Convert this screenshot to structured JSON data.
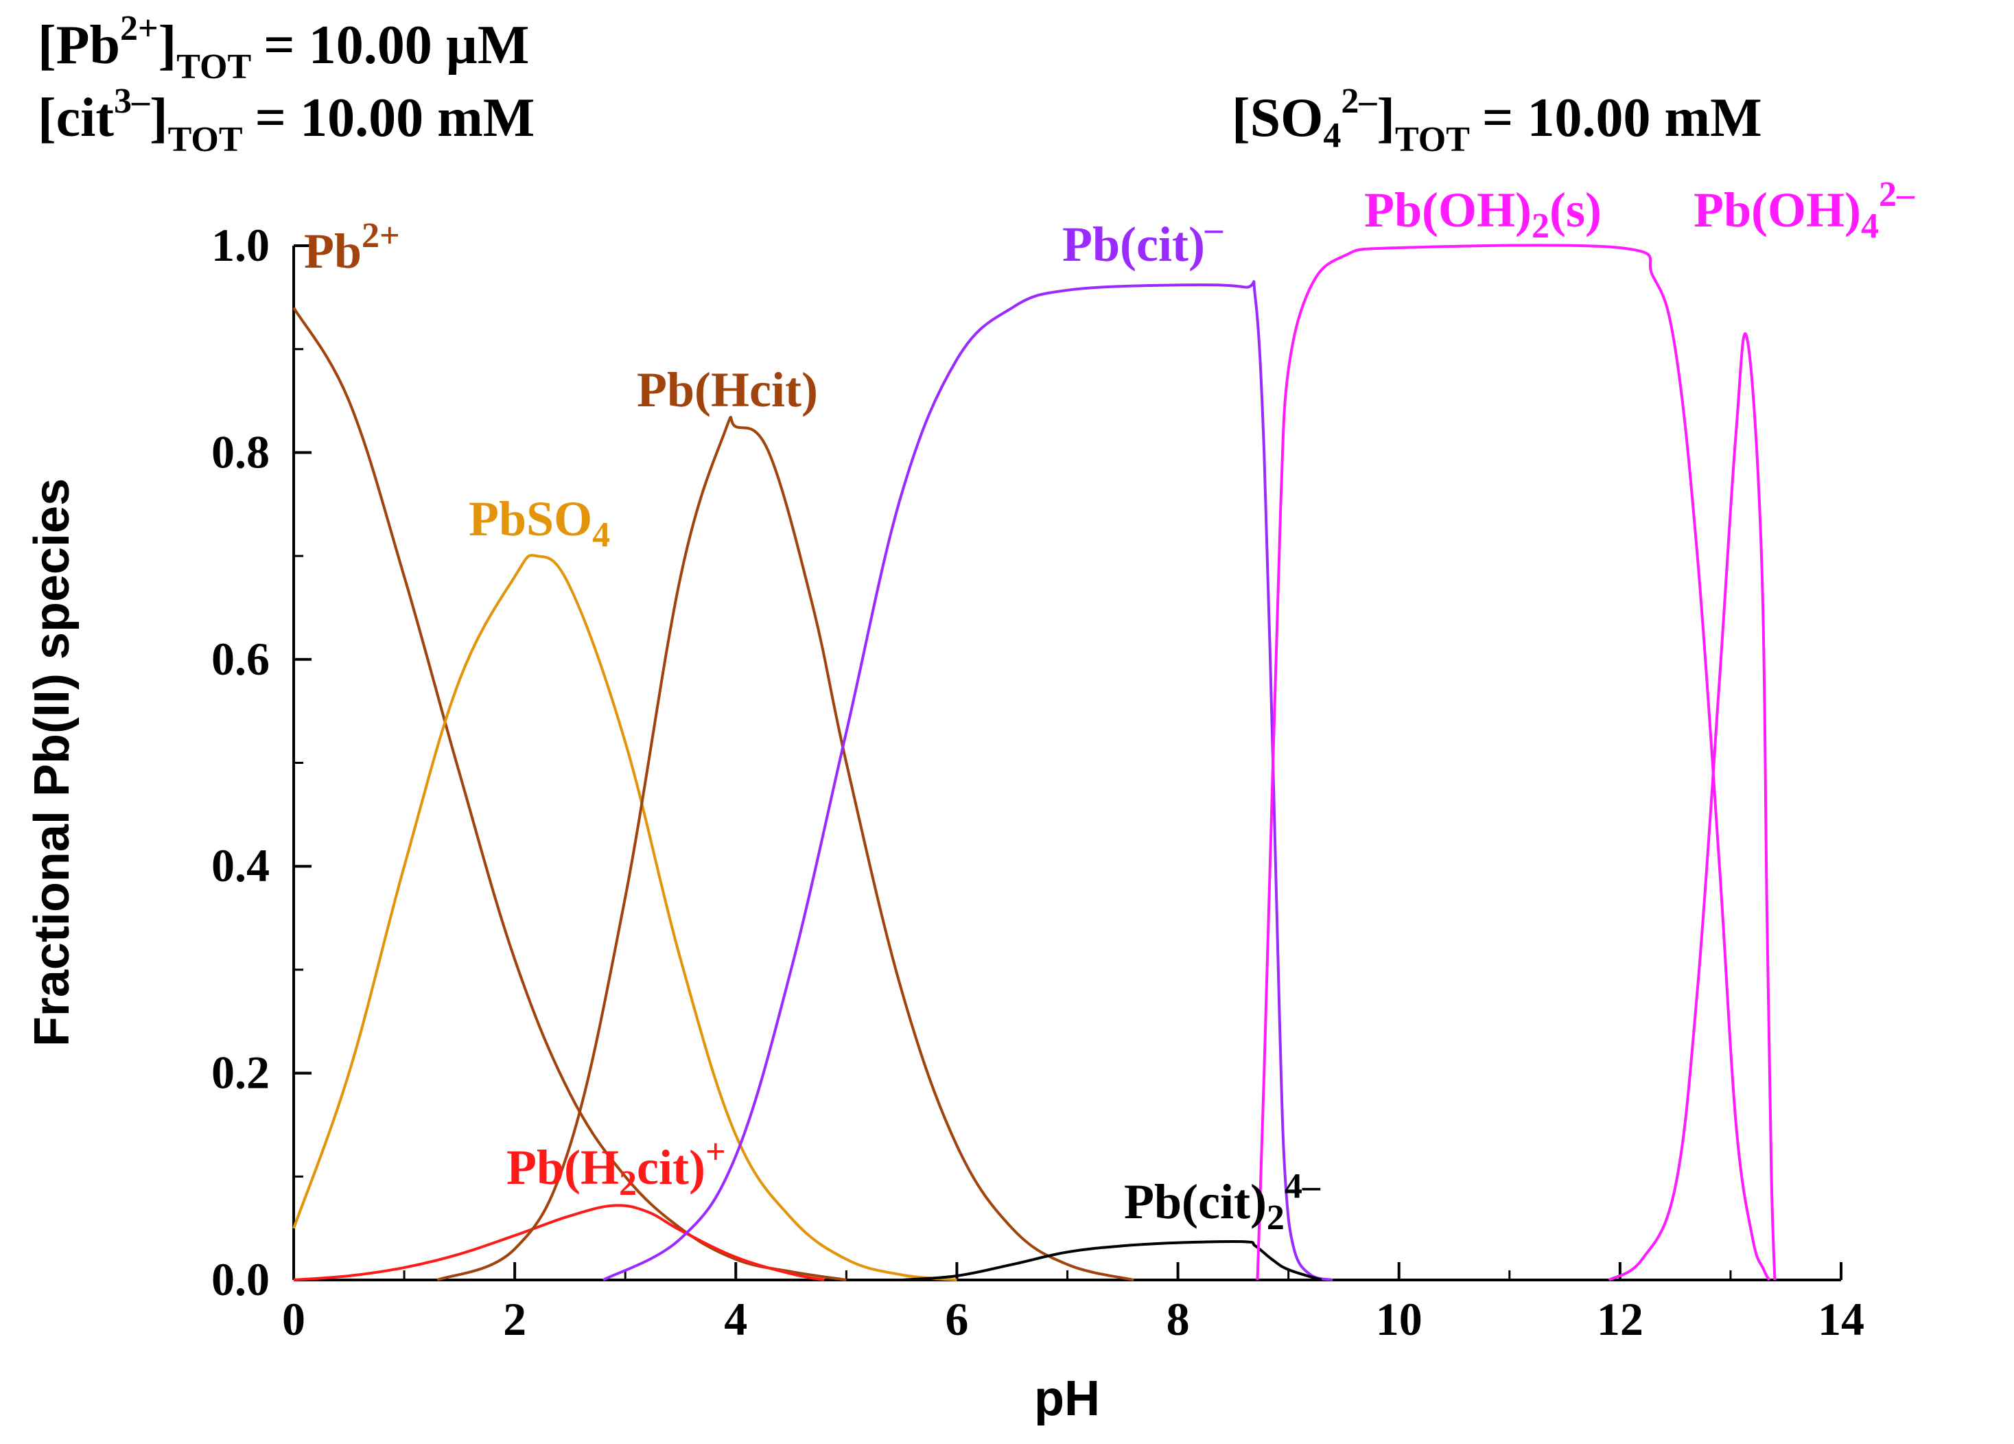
{
  "conditions": {
    "pb": {
      "open": "[Pb",
      "sup": "2+",
      "close": "]",
      "sub": "TOT",
      "value": "=   10.00 µM"
    },
    "cit": {
      "open": "[cit",
      "sup": "3–",
      "close": "]",
      "sub": "TOT",
      "value": "=   10.00 mM"
    },
    "so4": {
      "open": "[SO",
      "sub1": "4",
      "sup": "2–",
      "close": "]",
      "sub": "TOT",
      "value": "=   10.00 mM"
    }
  },
  "chart_data": {
    "type": "line",
    "title": "",
    "xlabel": "pH",
    "ylabel": "Fractional Pb(II) species",
    "xlim": [
      0,
      14
    ],
    "ylim": [
      0,
      1
    ],
    "x_ticks": [
      0,
      2,
      4,
      6,
      8,
      10,
      12,
      14
    ],
    "x_tick_labels": [
      "0",
      "2",
      "4",
      "6",
      "8",
      "10",
      "12",
      "14"
    ],
    "y_ticks": [
      0,
      0.2,
      0.4,
      0.6,
      0.8,
      1.0
    ],
    "y_tick_labels": [
      "0.0",
      "0.2",
      "0.4",
      "0.6",
      "0.8",
      "1.0"
    ],
    "grid": false,
    "series": [
      {
        "name": "Pb2+",
        "color": "#a0430c",
        "label": {
          "base": "Pb",
          "sup": "2+",
          "sub": ""
        },
        "points": [
          [
            0,
            0.94
          ],
          [
            0.5,
            0.85
          ],
          [
            1.0,
            0.68
          ],
          [
            1.5,
            0.49
          ],
          [
            2.0,
            0.31
          ],
          [
            2.5,
            0.18
          ],
          [
            3.0,
            0.1
          ],
          [
            3.5,
            0.05
          ],
          [
            4.0,
            0.02
          ],
          [
            4.5,
            0.008
          ],
          [
            5.0,
            0.0
          ]
        ]
      },
      {
        "name": "PbSO4",
        "color": "#e2950a",
        "label": {
          "base": "PbSO",
          "sub": "4",
          "sup": ""
        },
        "points": [
          [
            0,
            0.05
          ],
          [
            0.5,
            0.2
          ],
          [
            1.0,
            0.4
          ],
          [
            1.5,
            0.58
          ],
          [
            2.0,
            0.68
          ],
          [
            2.2,
            0.7
          ],
          [
            2.5,
            0.67
          ],
          [
            3.0,
            0.52
          ],
          [
            3.5,
            0.31
          ],
          [
            4.0,
            0.14
          ],
          [
            4.5,
            0.06
          ],
          [
            5.0,
            0.02
          ],
          [
            5.5,
            0.005
          ],
          [
            6.0,
            0.0
          ]
        ]
      },
      {
        "name": "Pb(H2cit)+",
        "color": "#ff1a1a",
        "label": {
          "base": "Pb(H",
          "sub": "2",
          "rest": "cit)",
          "sup": "+"
        },
        "points": [
          [
            0,
            0.0
          ],
          [
            0.5,
            0.004
          ],
          [
            1.0,
            0.012
          ],
          [
            1.5,
            0.025
          ],
          [
            2.0,
            0.043
          ],
          [
            2.5,
            0.062
          ],
          [
            2.9,
            0.072
          ],
          [
            3.2,
            0.066
          ],
          [
            3.5,
            0.048
          ],
          [
            4.0,
            0.022
          ],
          [
            4.5,
            0.006
          ],
          [
            4.8,
            0.0
          ]
        ]
      },
      {
        "name": "Pb(Hcit)",
        "color": "#a0430c",
        "label": {
          "base": "Pb(Hcit)",
          "sub": "",
          "sup": ""
        },
        "points": [
          [
            1.3,
            0.0
          ],
          [
            2.0,
            0.03
          ],
          [
            2.5,
            0.13
          ],
          [
            3.0,
            0.37
          ],
          [
            3.5,
            0.68
          ],
          [
            3.9,
            0.82
          ],
          [
            4.0,
            0.825
          ],
          [
            4.3,
            0.8
          ],
          [
            4.7,
            0.65
          ],
          [
            5.0,
            0.5
          ],
          [
            5.5,
            0.28
          ],
          [
            6.0,
            0.13
          ],
          [
            6.5,
            0.05
          ],
          [
            7.0,
            0.015
          ],
          [
            7.6,
            0.0
          ]
        ]
      },
      {
        "name": "Pb(cit)-",
        "color": "#9a2bff",
        "label": {
          "base": "Pb(cit)",
          "sup": "–",
          "sub": ""
        },
        "points": [
          [
            2.8,
            0.0
          ],
          [
            3.5,
            0.04
          ],
          [
            4.0,
            0.12
          ],
          [
            4.5,
            0.3
          ],
          [
            5.0,
            0.53
          ],
          [
            5.5,
            0.76
          ],
          [
            6.0,
            0.89
          ],
          [
            6.5,
            0.94
          ],
          [
            7.0,
            0.957
          ],
          [
            8.0,
            0.962
          ],
          [
            8.6,
            0.96
          ],
          [
            8.7,
            0.95
          ],
          [
            8.78,
            0.8
          ],
          [
            8.86,
            0.5
          ],
          [
            8.92,
            0.25
          ],
          [
            8.97,
            0.1
          ],
          [
            9.05,
            0.03
          ],
          [
            9.2,
            0.005
          ],
          [
            9.4,
            0.0
          ]
        ]
      },
      {
        "name": "Pb(cit)2^4-",
        "color": "#000000",
        "label": {
          "base": "Pb(cit)",
          "sub": "2",
          "sup": "4–"
        },
        "points": [
          [
            5.5,
            0.0
          ],
          [
            6.0,
            0.004
          ],
          [
            6.5,
            0.015
          ],
          [
            7.0,
            0.027
          ],
          [
            7.5,
            0.033
          ],
          [
            8.0,
            0.036
          ],
          [
            8.6,
            0.037
          ],
          [
            8.7,
            0.033
          ],
          [
            8.85,
            0.02
          ],
          [
            9.0,
            0.01
          ],
          [
            9.3,
            0.0
          ]
        ]
      },
      {
        "name": "Pb(OH)2(s)",
        "color": "#ff1aff",
        "label": {
          "base": "Pb(OH)",
          "sub": "2",
          "rest": "(s)",
          "sup": ""
        },
        "points": [
          [
            8.72,
            0.0
          ],
          [
            8.78,
            0.2
          ],
          [
            8.86,
            0.5
          ],
          [
            8.93,
            0.75
          ],
          [
            9.0,
            0.88
          ],
          [
            9.2,
            0.96
          ],
          [
            9.5,
            0.99
          ],
          [
            10.0,
            0.998
          ],
          [
            12.0,
            0.998
          ],
          [
            12.3,
            0.97
          ],
          [
            12.5,
            0.9
          ],
          [
            12.7,
            0.7
          ],
          [
            12.9,
            0.4
          ],
          [
            13.05,
            0.15
          ],
          [
            13.2,
            0.04
          ],
          [
            13.3,
            0.01
          ],
          [
            13.35,
            0.0
          ]
        ]
      },
      {
        "name": "Pb(OH)4^2-",
        "color": "#ff1aff",
        "label": {
          "base": "Pb(OH)",
          "sub": "4",
          "sup": "2–"
        },
        "points": [
          [
            11.9,
            0.0
          ],
          [
            12.2,
            0.02
          ],
          [
            12.5,
            0.09
          ],
          [
            12.7,
            0.28
          ],
          [
            12.9,
            0.58
          ],
          [
            13.05,
            0.82
          ],
          [
            13.15,
            0.91
          ],
          [
            13.28,
            0.7
          ],
          [
            13.33,
            0.35
          ],
          [
            13.37,
            0.1
          ],
          [
            13.4,
            0.0
          ]
        ]
      }
    ]
  }
}
